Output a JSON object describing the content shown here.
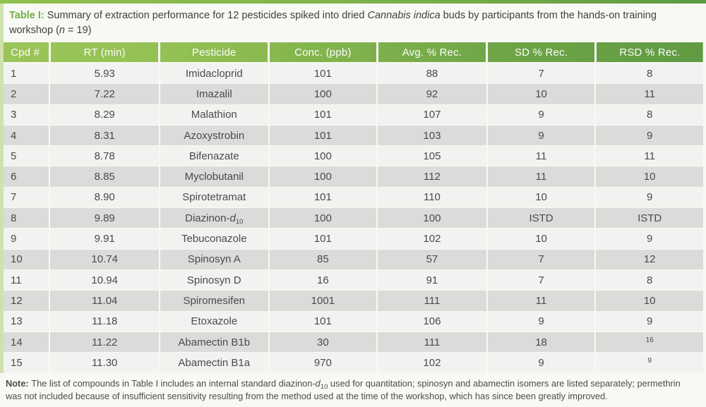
{
  "caption": {
    "label": "Table I: ",
    "text1": "Summary of extraction performance for 12 pesticides spiked into dried ",
    "species": "Cannabis indica",
    "text2": " buds by participants from the hands-on training workshop (",
    "n": "n",
    "text3": " = 19)"
  },
  "table": {
    "headers": [
      "Cpd #",
      "RT (min)",
      "Pesticide",
      "Conc. (ppb)",
      "Avg. % Rec.",
      "SD % Rec.",
      "RSD % Rec."
    ],
    "rows": [
      {
        "cpd": "1",
        "rt": "5.93",
        "pesticide": "Imidacloprid",
        "conc": "101",
        "avg": "88",
        "sd": "7",
        "rsd": "8"
      },
      {
        "cpd": "2",
        "rt": "7.22",
        "pesticide": "Imazalil",
        "conc": "100",
        "avg": "92",
        "sd": "10",
        "rsd": "11"
      },
      {
        "cpd": "3",
        "rt": "8.29",
        "pesticide": "Malathion",
        "conc": "101",
        "avg": "107",
        "sd": "9",
        "rsd": "8"
      },
      {
        "cpd": "4",
        "rt": "8.31",
        "pesticide": "Azoxystrobin",
        "conc": "101",
        "avg": "103",
        "sd": "9",
        "rsd": "9"
      },
      {
        "cpd": "5",
        "rt": "8.78",
        "pesticide": "Bifenazate",
        "conc": "100",
        "avg": "105",
        "sd": "11",
        "rsd": "11"
      },
      {
        "cpd": "6",
        "rt": "8.85",
        "pesticide": "Myclobutanil",
        "conc": "100",
        "avg": "112",
        "sd": "11",
        "rsd": "10"
      },
      {
        "cpd": "7",
        "rt": "8.90",
        "pesticide": "Spirotetramat",
        "conc": "101",
        "avg": "110",
        "sd": "10",
        "rsd": "9"
      },
      {
        "cpd": "8",
        "rt": "9.89",
        "pesticide": "Diazinon-",
        "pesticide_italic": "d",
        "pesticide_sub": "10",
        "conc": "100",
        "avg": "100",
        "sd": "ISTD",
        "rsd": "ISTD"
      },
      {
        "cpd": "9",
        "rt": "9.91",
        "pesticide": "Tebuconazole",
        "conc": "101",
        "avg": "102",
        "sd": "10",
        "rsd": "9"
      },
      {
        "cpd": "10",
        "rt": "10.74",
        "pesticide": "Spinosyn A",
        "conc": "85",
        "avg": "57",
        "sd": "7",
        "rsd": "12"
      },
      {
        "cpd": "11",
        "rt": "10.94",
        "pesticide": "Spinosyn D",
        "conc": "16",
        "avg": "91",
        "sd": "7",
        "rsd": "8"
      },
      {
        "cpd": "12",
        "rt": "11.04",
        "pesticide": "Spiromesifen",
        "conc": "1001",
        "avg": "111",
        "sd": "11",
        "rsd": "10"
      },
      {
        "cpd": "13",
        "rt": "11.18",
        "pesticide": "Etoxazole",
        "conc": "101",
        "avg": "106",
        "sd": "9",
        "rsd": "9"
      },
      {
        "cpd": "14",
        "rt": "11.22",
        "pesticide": "Abamectin B1b",
        "conc": "30",
        "avg": "111",
        "sd": "18",
        "rsd": "16",
        "rsd_sup": true
      },
      {
        "cpd": "15",
        "rt": "11.30",
        "pesticide": "Abamectin B1a",
        "conc": "970",
        "avg": "102",
        "sd": "9",
        "rsd": "9",
        "rsd_sup": true
      }
    ]
  },
  "note": {
    "label": "Note: ",
    "text1": "The list of compounds in Table I includes an internal standard diazinon-",
    "d_italic": "d",
    "d_sub": "10",
    "text2": " used for quantitation; spinosyn and abamectin isomers are listed separately; permethrin was not included because of insufficient sensitivity resulting from the method used at the time of the workshop, which has since been greatly improved."
  },
  "colors": {
    "header_green_left": "#9bc55a",
    "header_green_right": "#609b43",
    "accent_green": "#72ae43",
    "left_strip_green": "#d0e2ab",
    "row_light": "#f2f2f0",
    "row_dark": "#dbdbd9",
    "header_text": "#fdfdfb",
    "body_text": "#4a4a4a"
  }
}
